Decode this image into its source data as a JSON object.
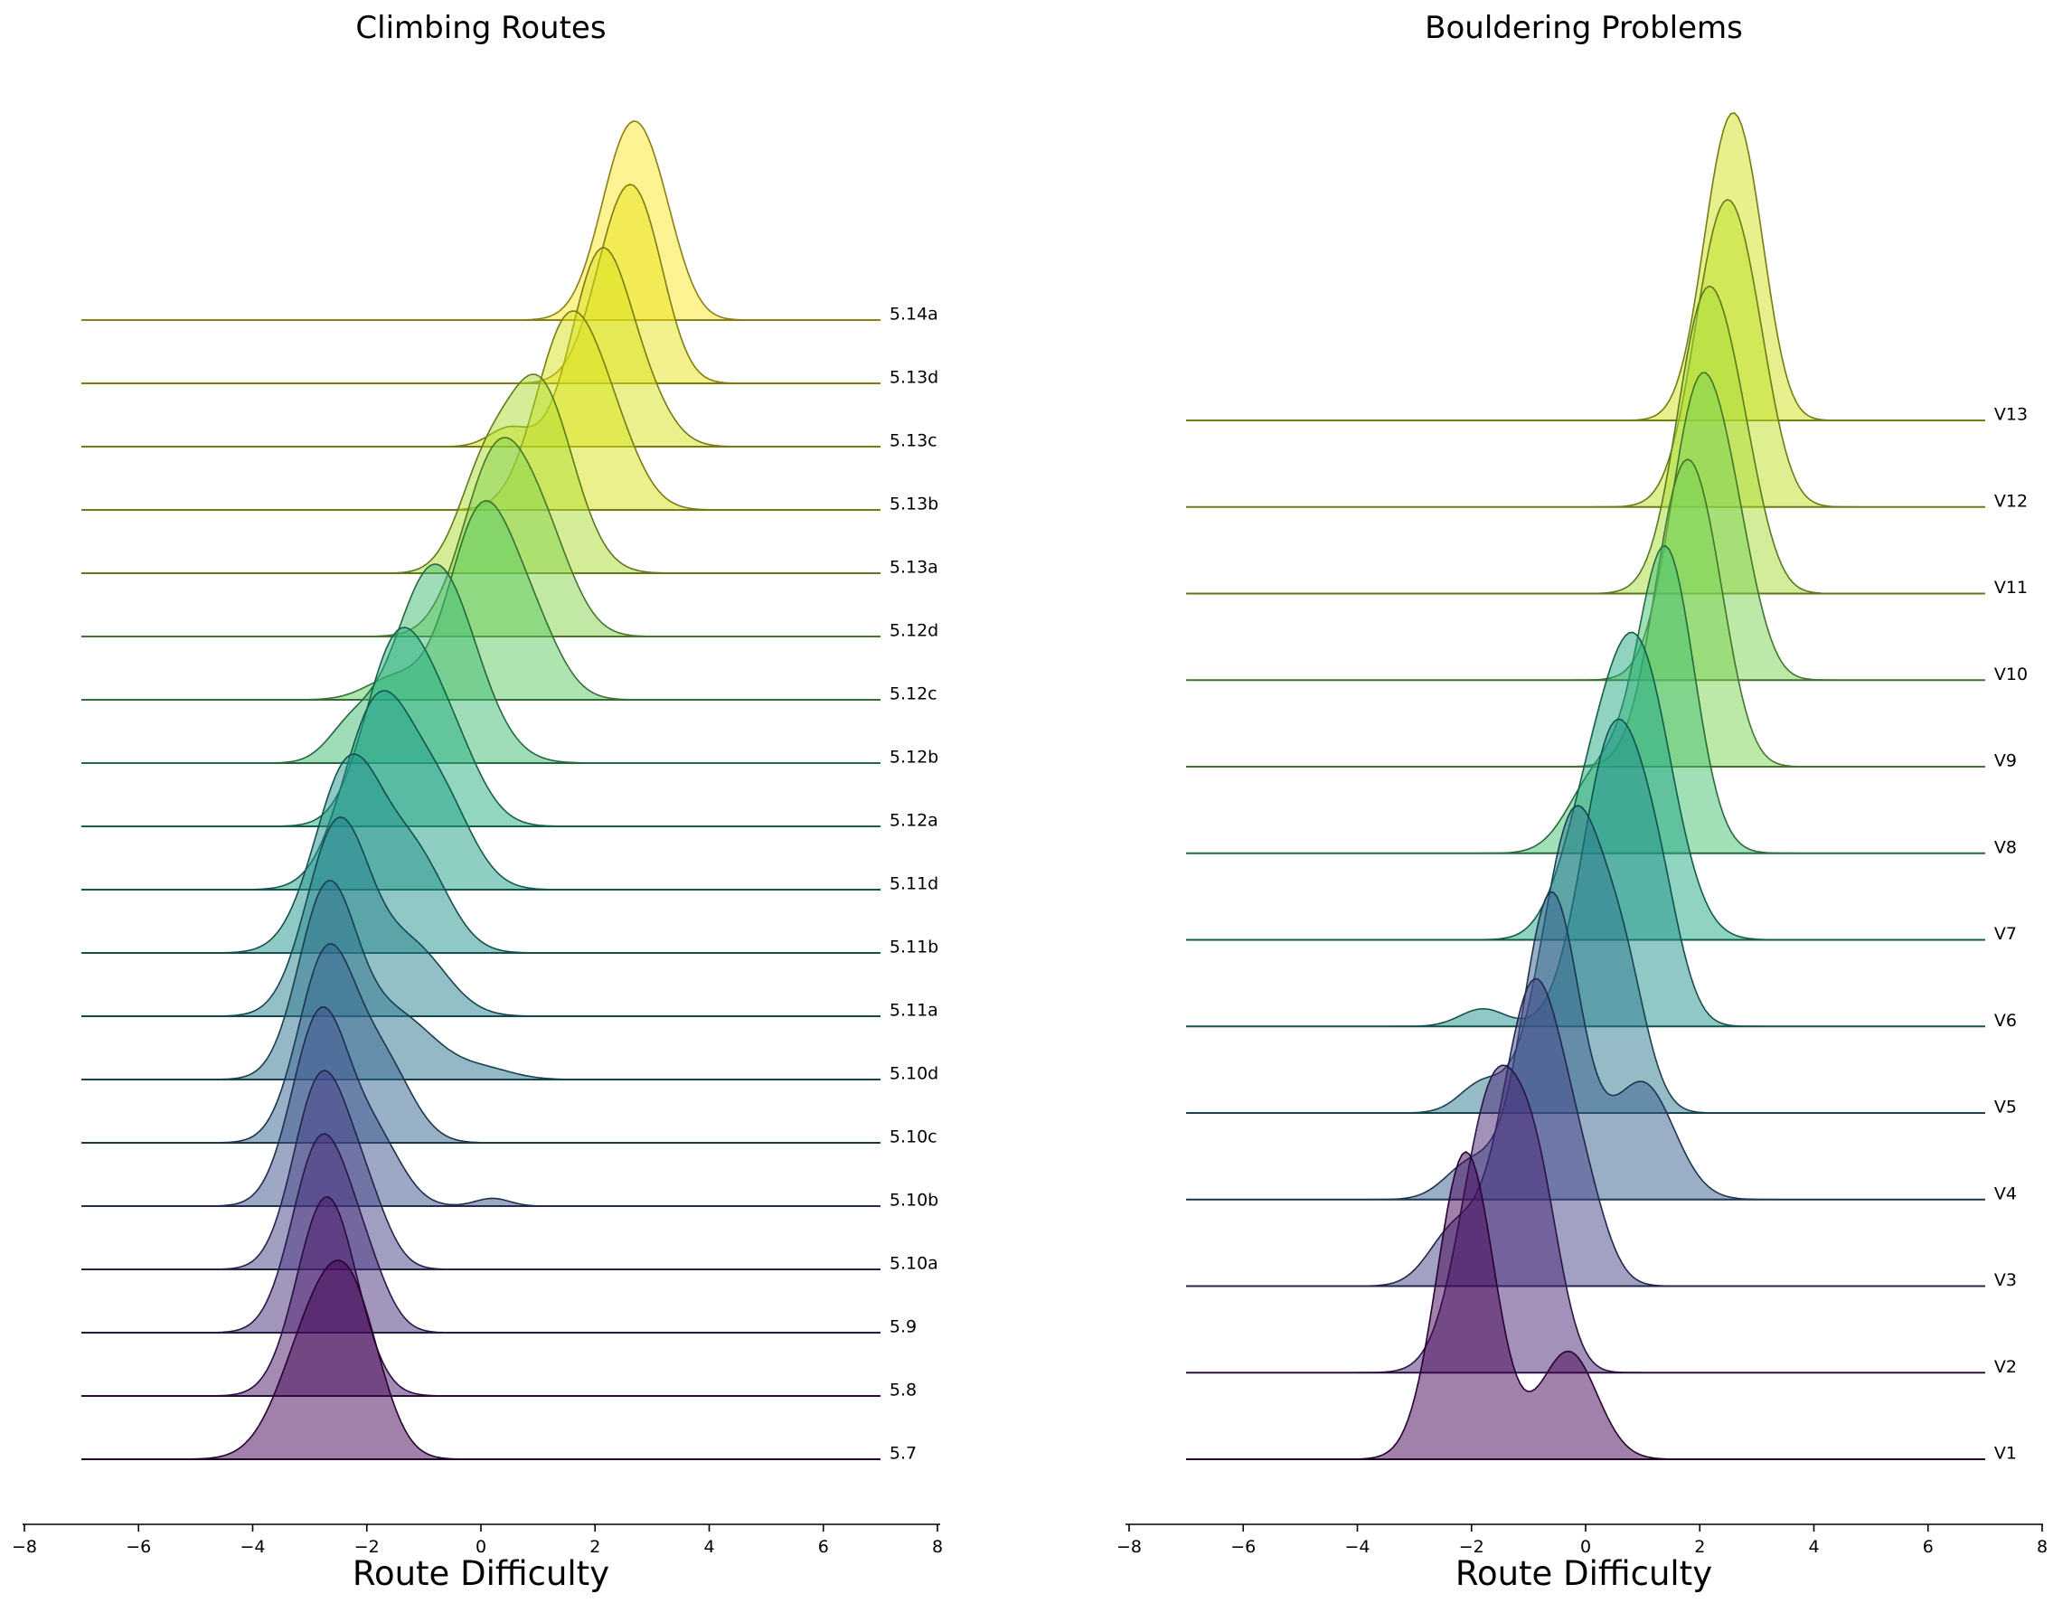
{
  "chart_data": [
    {
      "type": "ridgeline",
      "title": "Climbing Routes",
      "xlabel": "Route Difficulty",
      "ylabel": "",
      "xlim": [
        -8,
        8
      ],
      "x_ticks": [
        -8,
        -6,
        -4,
        -2,
        0,
        2,
        4,
        6,
        8
      ],
      "x_range_of_curves": [
        -7,
        7
      ],
      "grid": false,
      "colormap": "viridis",
      "fill_opacity": 0.5,
      "series": [
        {
          "name": "5.7",
          "color": "#440154",
          "peaks": [
            {
              "mu": -2.9,
              "sigma": 0.6,
              "amp": 0.8
            },
            {
              "mu": -2.2,
              "sigma": 0.5,
              "amp": 0.7
            }
          ]
        },
        {
          "name": "5.8",
          "color": "#48186a",
          "peaks": [
            {
              "mu": -2.7,
              "sigma": 0.52,
              "amp": 1.0
            }
          ]
        },
        {
          "name": "5.9",
          "color": "#472d7b",
          "peaks": [
            {
              "mu": -2.8,
              "sigma": 0.5,
              "amp": 1.0
            },
            {
              "mu": -2.0,
              "sigma": 0.4,
              "amp": 0.25
            }
          ]
        },
        {
          "name": "5.10a",
          "color": "#424086",
          "peaks": [
            {
              "mu": -2.8,
              "sigma": 0.48,
              "amp": 1.0
            },
            {
              "mu": -2.0,
              "sigma": 0.4,
              "amp": 0.3
            }
          ]
        },
        {
          "name": "5.10b",
          "color": "#3b528b",
          "peaks": [
            {
              "mu": -2.8,
              "sigma": 0.5,
              "amp": 1.0
            },
            {
              "mu": -1.8,
              "sigma": 0.45,
              "amp": 0.3
            },
            {
              "mu": 0.2,
              "sigma": 0.3,
              "amp": 0.04
            }
          ]
        },
        {
          "name": "5.10c",
          "color": "#33638d",
          "peaks": [
            {
              "mu": -2.7,
              "sigma": 0.5,
              "amp": 1.0
            },
            {
              "mu": -1.7,
              "sigma": 0.5,
              "amp": 0.4
            }
          ]
        },
        {
          "name": "5.10d",
          "color": "#2c728e",
          "peaks": [
            {
              "mu": -2.7,
              "sigma": 0.5,
              "amp": 1.0
            },
            {
              "mu": -1.5,
              "sigma": 0.7,
              "amp": 0.35
            },
            {
              "mu": 0.1,
              "sigma": 0.5,
              "amp": 0.05
            }
          ]
        },
        {
          "name": "5.11a",
          "color": "#26828e",
          "peaks": [
            {
              "mu": -2.5,
              "sigma": 0.55,
              "amp": 1.0
            },
            {
              "mu": -1.2,
              "sigma": 0.6,
              "amp": 0.35
            }
          ]
        },
        {
          "name": "5.11b",
          "color": "#21918c",
          "peaks": [
            {
              "mu": -2.3,
              "sigma": 0.6,
              "amp": 1.0
            },
            {
              "mu": -1.1,
              "sigma": 0.55,
              "amp": 0.45
            }
          ]
        },
        {
          "name": "5.11d",
          "color": "#1fa088",
          "peaks": [
            {
              "mu": -1.8,
              "sigma": 0.6,
              "amp": 1.0
            },
            {
              "mu": -0.7,
              "sigma": 0.55,
              "amp": 0.45
            }
          ]
        },
        {
          "name": "5.12a",
          "color": "#28ae80",
          "peaks": [
            {
              "mu": -1.5,
              "sigma": 0.55,
              "amp": 1.0
            },
            {
              "mu": -0.6,
              "sigma": 0.55,
              "amp": 0.5
            }
          ]
        },
        {
          "name": "5.12b",
          "color": "#3fbc73",
          "peaks": [
            {
              "mu": -0.8,
              "sigma": 0.7,
              "amp": 1.0
            },
            {
              "mu": -2.3,
              "sigma": 0.4,
              "amp": 0.15
            }
          ]
        },
        {
          "name": "5.12c",
          "color": "#5ec962",
          "peaks": [
            {
              "mu": 0.0,
              "sigma": 0.55,
              "amp": 1.0
            },
            {
              "mu": 0.9,
              "sigma": 0.5,
              "amp": 0.35
            },
            {
              "mu": -1.5,
              "sigma": 0.5,
              "amp": 0.12
            }
          ]
        },
        {
          "name": "5.12d",
          "color": "#84d44b",
          "peaks": [
            {
              "mu": 0.3,
              "sigma": 0.6,
              "amp": 1.0
            },
            {
              "mu": 1.2,
              "sigma": 0.5,
              "amp": 0.35
            }
          ]
        },
        {
          "name": "5.13a",
          "color": "#addc30",
          "peaks": [
            {
              "mu": 1.0,
              "sigma": 0.6,
              "amp": 1.0
            },
            {
              "mu": 0.0,
              "sigma": 0.45,
              "amp": 0.4
            }
          ]
        },
        {
          "name": "5.13b",
          "color": "#d8e219",
          "peaks": [
            {
              "mu": 1.5,
              "sigma": 0.55,
              "amp": 1.0
            },
            {
              "mu": 2.3,
              "sigma": 0.5,
              "amp": 0.35
            }
          ]
        },
        {
          "name": "5.13c",
          "color": "#d8e219",
          "peaks": [
            {
              "mu": 2.1,
              "sigma": 0.5,
              "amp": 1.0
            },
            {
              "mu": 2.9,
              "sigma": 0.45,
              "amp": 0.2
            },
            {
              "mu": 0.5,
              "sigma": 0.35,
              "amp": 0.1
            }
          ]
        },
        {
          "name": "5.13d",
          "color": "#e5e419",
          "peaks": [
            {
              "mu": 2.5,
              "sigma": 0.5,
              "amp": 1.0
            },
            {
              "mu": 3.0,
              "sigma": 0.4,
              "amp": 0.3
            }
          ]
        },
        {
          "name": "5.14a",
          "color": "#fde725",
          "peaks": [
            {
              "mu": 2.6,
              "sigma": 0.5,
              "amp": 1.0
            },
            {
              "mu": 3.2,
              "sigma": 0.4,
              "amp": 0.25
            }
          ]
        }
      ]
    },
    {
      "type": "ridgeline",
      "title": "Bouldering Problems",
      "xlabel": "Route Difficulty",
      "ylabel": "",
      "xlim": [
        -8,
        8
      ],
      "x_ticks": [
        -8,
        -6,
        -4,
        -2,
        0,
        2,
        4,
        6,
        8
      ],
      "x_range_of_curves": [
        -7,
        7
      ],
      "grid": false,
      "colormap": "viridis",
      "fill_opacity": 0.5,
      "series": [
        {
          "name": "V1",
          "color": "#440154",
          "peaks": [
            {
              "mu": -2.1,
              "sigma": 0.5,
              "amp": 1.0
            },
            {
              "mu": -0.3,
              "sigma": 0.5,
              "amp": 0.35
            }
          ]
        },
        {
          "name": "V2",
          "color": "#482475",
          "peaks": [
            {
              "mu": -1.6,
              "sigma": 0.55,
              "amp": 1.0
            },
            {
              "mu": -0.8,
              "sigma": 0.4,
              "amp": 0.45
            }
          ]
        },
        {
          "name": "V3",
          "color": "#414487",
          "peaks": [
            {
              "mu": -0.9,
              "sigma": 0.55,
              "amp": 1.0
            },
            {
              "mu": -2.3,
              "sigma": 0.45,
              "amp": 0.18
            },
            {
              "mu": 0.0,
              "sigma": 0.4,
              "amp": 0.2
            }
          ]
        },
        {
          "name": "V4",
          "color": "#355f8d",
          "peaks": [
            {
              "mu": -0.6,
              "sigma": 0.5,
              "amp": 1.0
            },
            {
              "mu": 1.0,
              "sigma": 0.55,
              "amp": 0.38
            },
            {
              "mu": -2.0,
              "sigma": 0.45,
              "amp": 0.12
            }
          ]
        },
        {
          "name": "V5",
          "color": "#2a788e",
          "peaks": [
            {
              "mu": -0.2,
              "sigma": 0.55,
              "amp": 1.0
            },
            {
              "mu": 0.7,
              "sigma": 0.4,
              "amp": 0.35
            },
            {
              "mu": -1.8,
              "sigma": 0.4,
              "amp": 0.1
            }
          ]
        },
        {
          "name": "V6",
          "color": "#21918c",
          "peaks": [
            {
              "mu": 0.5,
              "sigma": 0.55,
              "amp": 1.0
            },
            {
              "mu": 1.3,
              "sigma": 0.4,
              "amp": 0.3
            },
            {
              "mu": -1.8,
              "sigma": 0.4,
              "amp": 0.06
            }
          ]
        },
        {
          "name": "V7",
          "color": "#22a884",
          "peaks": [
            {
              "mu": 0.9,
              "sigma": 0.6,
              "amp": 1.0
            },
            {
              "mu": 0.0,
              "sigma": 0.5,
              "amp": 0.3
            }
          ]
        },
        {
          "name": "V8",
          "color": "#44bf70",
          "peaks": [
            {
              "mu": 1.4,
              "sigma": 0.5,
              "amp": 1.0
            },
            {
              "mu": 0.2,
              "sigma": 0.5,
              "amp": 0.25
            }
          ]
        },
        {
          "name": "V9",
          "color": "#7ad151",
          "peaks": [
            {
              "mu": 1.7,
              "sigma": 0.5,
              "amp": 1.0
            },
            {
              "mu": 2.3,
              "sigma": 0.4,
              "amp": 0.25
            }
          ]
        },
        {
          "name": "V10",
          "color": "#7ad151",
          "peaks": [
            {
              "mu": 2.0,
              "sigma": 0.5,
              "amp": 1.0
            },
            {
              "mu": 2.7,
              "sigma": 0.4,
              "amp": 0.25
            }
          ]
        },
        {
          "name": "V11",
          "color": "#a5db36",
          "peaks": [
            {
              "mu": 2.1,
              "sigma": 0.5,
              "amp": 1.0
            },
            {
              "mu": 2.8,
              "sigma": 0.4,
              "amp": 0.25
            }
          ]
        },
        {
          "name": "V12",
          "color": "#bddf26",
          "peaks": [
            {
              "mu": 2.4,
              "sigma": 0.5,
              "amp": 1.0
            },
            {
              "mu": 3.0,
              "sigma": 0.4,
              "amp": 0.25
            }
          ]
        },
        {
          "name": "V13",
          "color": "#d2e21b",
          "peaks": [
            {
              "mu": 2.5,
              "sigma": 0.45,
              "amp": 1.0
            },
            {
              "mu": 3.0,
              "sigma": 0.35,
              "amp": 0.25
            }
          ]
        }
      ]
    }
  ]
}
